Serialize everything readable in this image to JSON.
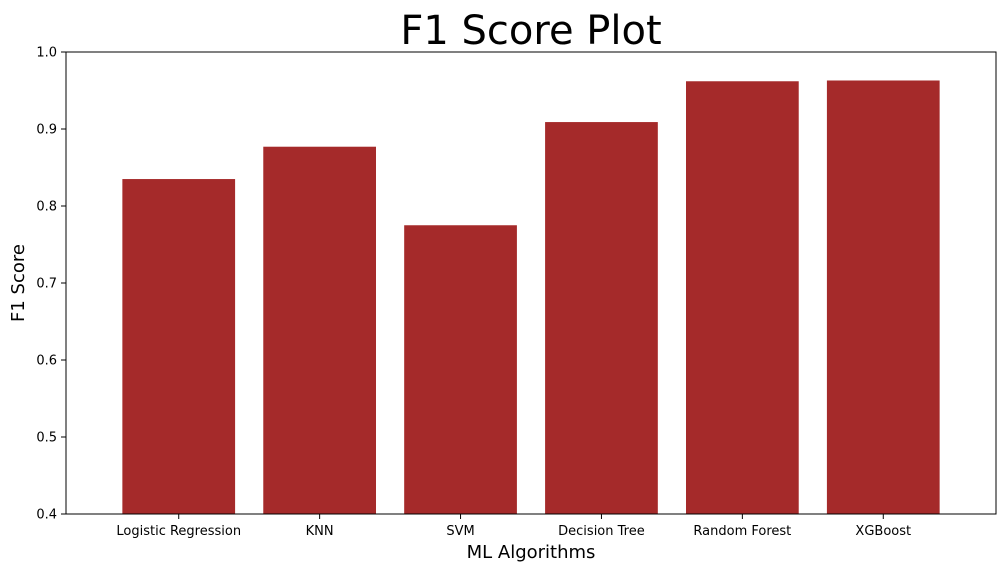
{
  "chart_data": {
    "type": "bar",
    "title": "F1 Score Plot",
    "xlabel": "ML Algorithms",
    "ylabel": "F1 Score",
    "categories": [
      "Logistic Regression",
      "KNN",
      "SVM",
      "Decision Tree",
      "Random Forest",
      "XGBoost"
    ],
    "values": [
      0.835,
      0.877,
      0.775,
      0.909,
      0.962,
      0.963
    ],
    "ylim": [
      0.4,
      1.0
    ],
    "yticks": [
      0.4,
      0.5,
      0.6,
      0.7,
      0.8,
      0.9,
      1.0
    ],
    "ytick_labels": [
      "0.4",
      "0.5",
      "0.6",
      "0.7",
      "0.8",
      "0.9",
      "1.0"
    ],
    "bar_color": "#a52a2a",
    "grid": false,
    "legend": "none"
  }
}
